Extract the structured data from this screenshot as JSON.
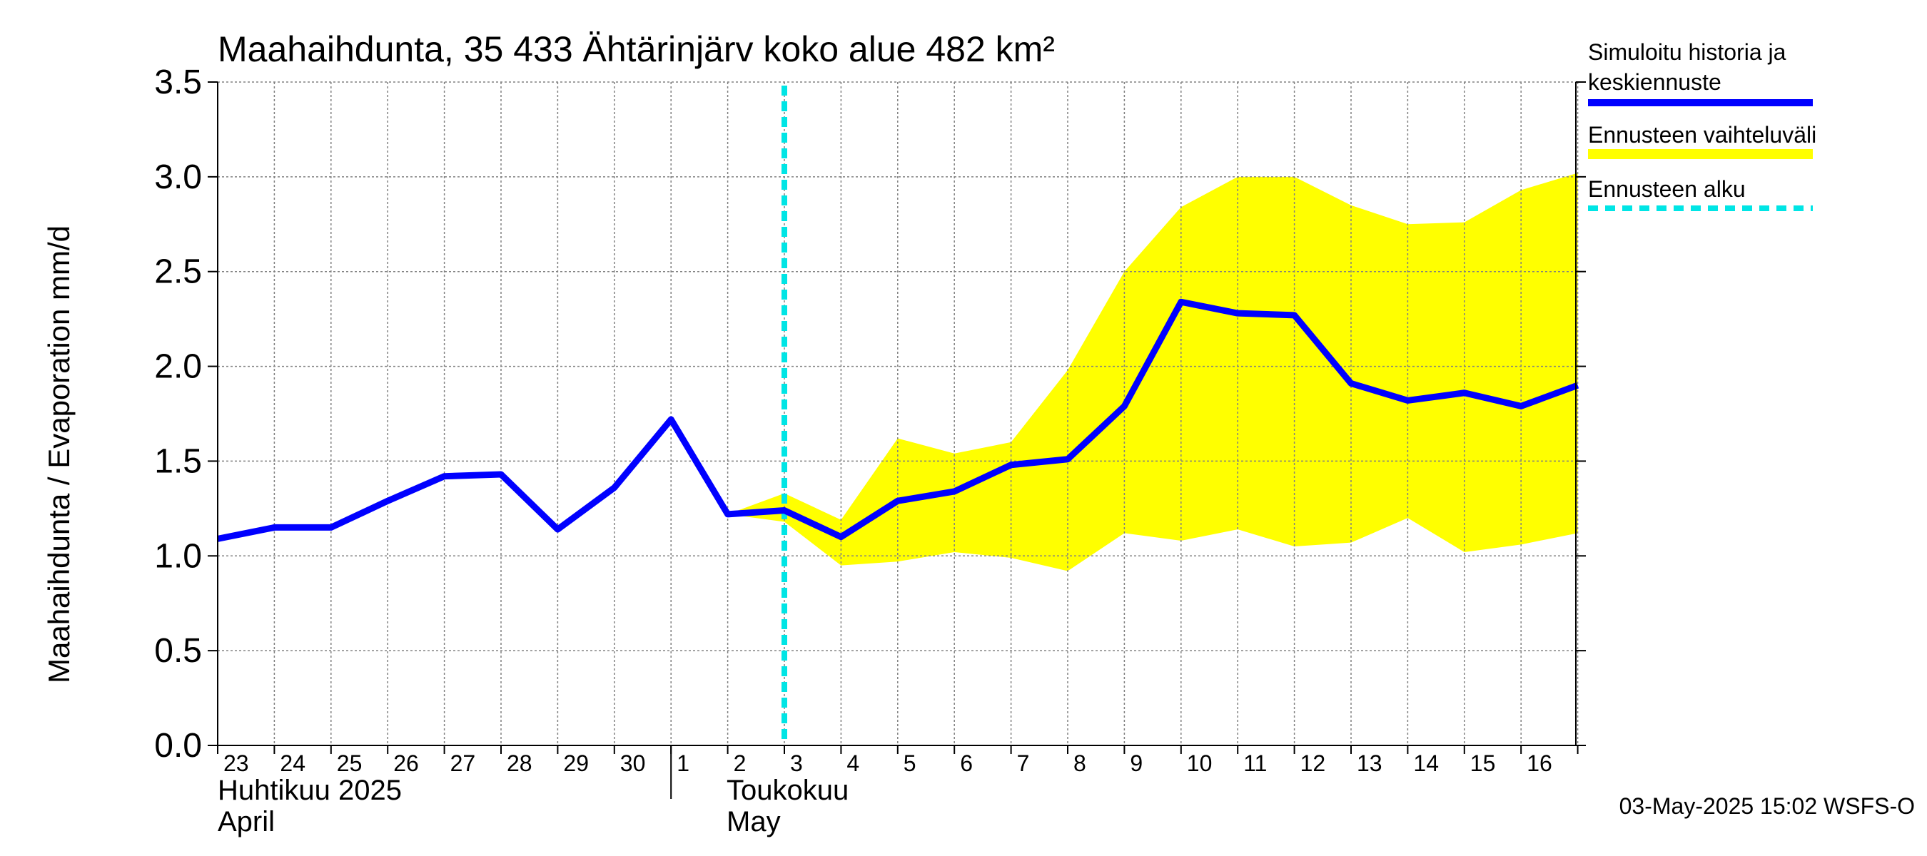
{
  "chart_data": {
    "type": "line",
    "title": "Maahaihdunta, 35 433 Ähtärinjärv koko alue 482 km²",
    "ylabel": "Maahaihdunta / Evaporation   mm/d",
    "ylim": [
      0,
      3.5
    ],
    "yticks": [
      "0.0",
      "0.5",
      "1.0",
      "1.5",
      "2.0",
      "2.5",
      "3.0",
      "3.5"
    ],
    "ytick_values": [
      0,
      0.5,
      1.0,
      1.5,
      2.0,
      2.5,
      3.0,
      3.5
    ],
    "x_day_labels": [
      "23",
      "24",
      "25",
      "26",
      "27",
      "28",
      "29",
      "30",
      "1",
      "2",
      "3",
      "4",
      "5",
      "6",
      "7",
      "8",
      "9",
      "10",
      "11",
      "12",
      "13",
      "14",
      "15",
      "16"
    ],
    "month_labels": {
      "april_fi": "Huhtikuu  2025",
      "april_en": "April",
      "may_fi": "Toukokuu",
      "may_en": "May"
    },
    "series": [
      {
        "name": "Simuloitu historia ja keskiennuste",
        "color": "#0000ff",
        "x": [
          "2025-04-23",
          "2025-04-24",
          "2025-04-25",
          "2025-04-26",
          "2025-04-27",
          "2025-04-28",
          "2025-04-29",
          "2025-04-30",
          "2025-05-01",
          "2025-05-02",
          "2025-05-03",
          "2025-05-04",
          "2025-05-05",
          "2025-05-06",
          "2025-05-07",
          "2025-05-08",
          "2025-05-09",
          "2025-05-10",
          "2025-05-11",
          "2025-05-12",
          "2025-05-13",
          "2025-05-14",
          "2025-05-15",
          "2025-05-16",
          "2025-05-17"
        ],
        "values": [
          1.09,
          1.15,
          1.15,
          1.29,
          1.42,
          1.43,
          1.14,
          1.36,
          1.72,
          1.22,
          1.24,
          1.1,
          1.29,
          1.34,
          1.48,
          1.51,
          1.79,
          2.34,
          2.28,
          2.27,
          1.91,
          1.82,
          1.86,
          1.79,
          1.9
        ]
      },
      {
        "name": "Ennusteen vaihteluväli",
        "color": "#ffff00",
        "type": "band",
        "x": [
          "2025-05-02",
          "2025-05-03",
          "2025-05-04",
          "2025-05-05",
          "2025-05-06",
          "2025-05-07",
          "2025-05-08",
          "2025-05-09",
          "2025-05-10",
          "2025-05-11",
          "2025-05-12",
          "2025-05-13",
          "2025-05-14",
          "2025-05-15",
          "2025-05-16",
          "2025-05-17"
        ],
        "upper": [
          1.22,
          1.33,
          1.19,
          1.62,
          1.54,
          1.6,
          1.98,
          2.5,
          2.84,
          3.0,
          3.0,
          2.85,
          2.75,
          2.76,
          2.93,
          3.02
        ],
        "lower": [
          1.22,
          1.18,
          0.95,
          0.97,
          1.02,
          0.99,
          0.92,
          1.12,
          1.08,
          1.14,
          1.05,
          1.07,
          1.2,
          1.02,
          1.06,
          1.12
        ]
      }
    ],
    "forecast_start": "2025-05-03",
    "forecast_start_color": "#00e5e5",
    "grid": true,
    "legend": {
      "placement": "right",
      "items": [
        {
          "label_line1": "Simuloitu historia ja",
          "label_line2": "keskiennuste",
          "color": "#0000ff",
          "style": "solid"
        },
        {
          "label_line1": "Ennusteen vaihteluväli",
          "color": "#ffff00",
          "style": "band"
        },
        {
          "label_line1": "Ennusteen alku",
          "color": "#00e5e5",
          "style": "dashed"
        }
      ]
    },
    "footer": "03-May-2025 15:02 WSFS-O"
  }
}
